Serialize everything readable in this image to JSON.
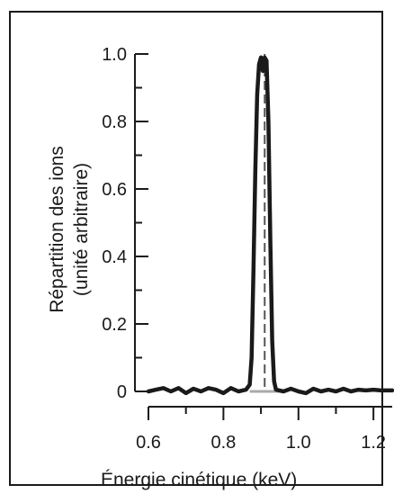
{
  "chart_data": {
    "type": "line",
    "ylabel_line1": "Répartition des ions",
    "ylabel_line2": "(unité arbitraire)",
    "xlabel": "Énergie cinétique (keV)",
    "xlim": [
      0.6,
      1.25
    ],
    "ylim": [
      0,
      1.0
    ],
    "x_ticks": [
      "0.6",
      "0.8",
      "1.0",
      "1.2"
    ],
    "x_tick_values": [
      0.6,
      0.8,
      1.0,
      1.2
    ],
    "y_ticks": [
      "0",
      "0.2",
      "0.4",
      "0.6",
      "0.8",
      "1.0"
    ],
    "y_tick_values": [
      0,
      0.2,
      0.4,
      0.6,
      0.8,
      1.0
    ],
    "reference_line_x": 0.91,
    "grid": false,
    "series": [
      {
        "color": "#1a1a1a",
        "x": [
          0.6,
          0.62,
          0.64,
          0.66,
          0.68,
          0.7,
          0.72,
          0.74,
          0.76,
          0.78,
          0.8,
          0.82,
          0.84,
          0.86,
          0.87,
          0.875,
          0.88,
          0.885,
          0.89,
          0.895,
          0.9,
          0.905,
          0.91,
          0.915,
          0.92,
          0.925,
          0.93,
          0.935,
          0.94,
          0.96,
          0.98,
          1.0,
          1.02,
          1.04,
          1.06,
          1.08,
          1.1,
          1.12,
          1.14,
          1.16,
          1.18,
          1.2,
          1.22,
          1.25
        ],
        "y": [
          0,
          0.005,
          0.01,
          0.0,
          0.01,
          -0.005,
          0.008,
          0.0,
          0.01,
          0.005,
          -0.005,
          0.01,
          0.0,
          0.005,
          0.02,
          0.1,
          0.35,
          0.65,
          0.88,
          0.97,
          0.99,
          0.95,
          0.99,
          0.98,
          0.8,
          0.45,
          0.15,
          0.03,
          0.005,
          0.0,
          0.008,
          0.0,
          -0.005,
          0.008,
          0.0,
          0.005,
          0.0,
          0.008,
          0.0,
          0.005,
          0.003,
          0.005,
          0.003,
          0.003
        ]
      }
    ]
  }
}
